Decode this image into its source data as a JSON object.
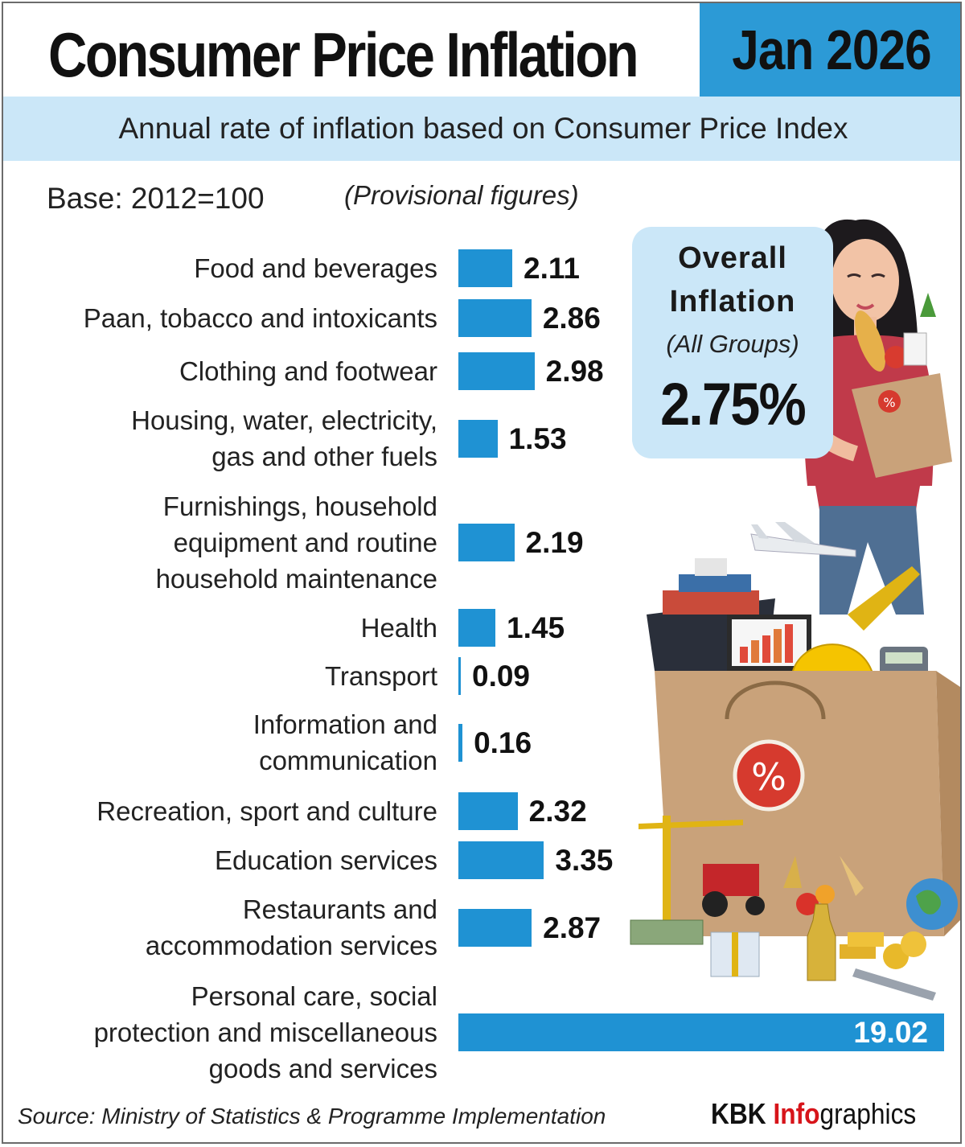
{
  "header": {
    "title": "Consumer Price Inflation",
    "date": "Jan 2026",
    "subtitle": "Annual rate of inflation based on Consumer Price Index"
  },
  "notes": {
    "base": "Base: 2012=100",
    "provisional": "(Provisional figures)"
  },
  "overall": {
    "line1": "Overall",
    "line2": "Inflation",
    "sub": "(All Groups)",
    "value": "2.75%"
  },
  "chart_data": {
    "type": "bar",
    "orientation": "horizontal",
    "title": "Annual rate of inflation based on Consumer Price Index",
    "xlabel": "",
    "ylabel": "",
    "xlim": [
      0,
      19.02
    ],
    "categories": [
      [
        "Food and beverages"
      ],
      [
        "Paan, tobacco and intoxicants"
      ],
      [
        "Clothing and footwear"
      ],
      [
        "Housing, water, electricity,",
        "gas and other fuels"
      ],
      [
        "Furnishings, household",
        "equipment and routine",
        "household maintenance"
      ],
      [
        "Health"
      ],
      [
        "Transport"
      ],
      [
        "Information and",
        "communication"
      ],
      [
        "Recreation, sport and culture"
      ],
      [
        "Education services"
      ],
      [
        "Restaurants and",
        "accommodation services"
      ],
      [
        "Personal care, social",
        "protection and miscellaneous",
        "goods and services"
      ]
    ],
    "values": [
      2.11,
      2.86,
      2.98,
      1.53,
      2.19,
      1.45,
      0.09,
      0.16,
      2.32,
      3.35,
      2.87,
      19.02
    ],
    "value_labels": [
      "2.11",
      "2.86",
      "2.98",
      "1.53",
      "2.19",
      "1.45",
      "0.09",
      "0.16",
      "2.32",
      "3.35",
      "2.87",
      "19.02"
    ],
    "bar_color": "#1f92d3"
  },
  "footer": {
    "source": "Source: Ministry of Statistics & Programme Implementation",
    "brand_a": "KBK ",
    "brand_b": "Info",
    "brand_c": "graphics"
  },
  "colors": {
    "accent": "#2c9ad6",
    "panel": "#cbe7f8",
    "brand_red": "#d7141a"
  }
}
